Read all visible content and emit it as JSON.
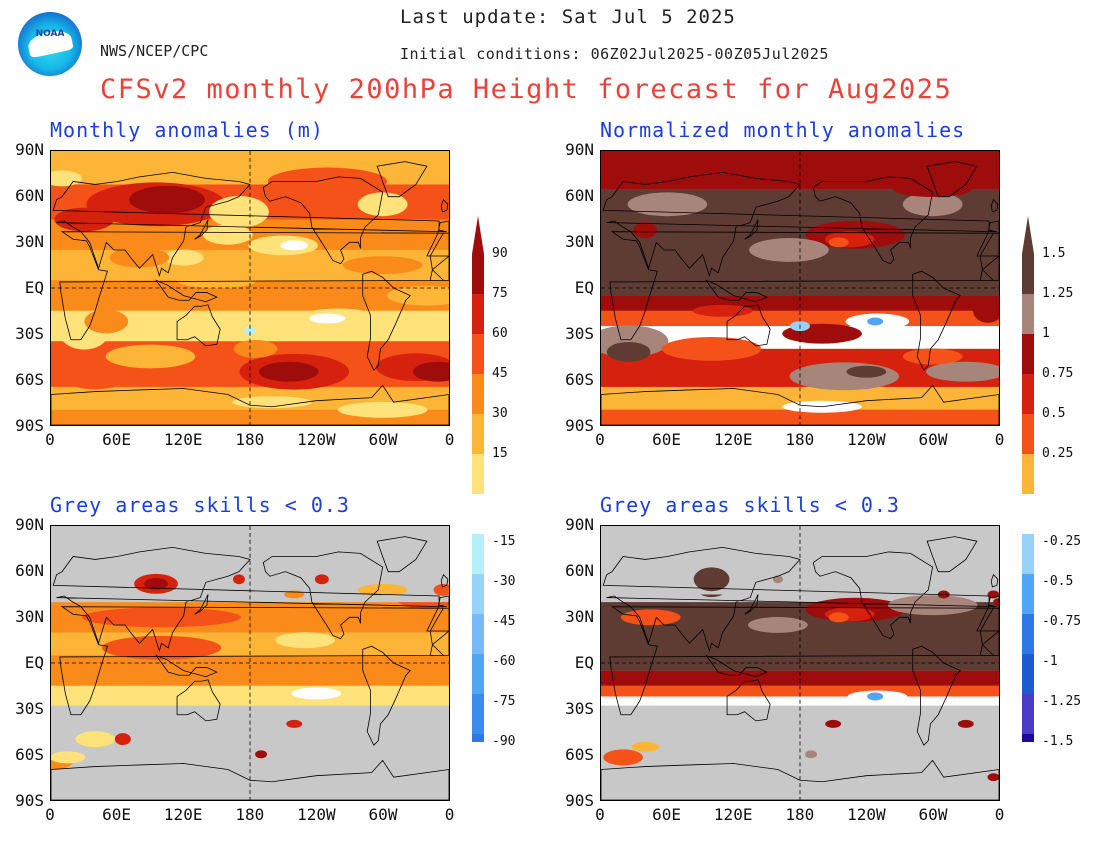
{
  "header": {
    "last_update": "Last update: Sat Jul 5 2025",
    "initial_conditions": "Initial conditions: 06Z02Jul2025-00Z05Jul2025",
    "org": "NWS/NCEP/CPC",
    "logo_text": "NOAA",
    "title": "CFSv2 monthly 200hPa Height forecast for Aug2025"
  },
  "panels": [
    {
      "id": "tl",
      "title": "Monthly anomalies (m)",
      "type": "anomaly",
      "masked": false
    },
    {
      "id": "tr",
      "title": "Normalized monthly anomalies",
      "type": "normalized",
      "masked": false
    },
    {
      "id": "bl",
      "title": "Grey areas skills < 0.3",
      "type": "anomaly",
      "masked": true
    },
    {
      "id": "br",
      "title": "Grey areas skills < 0.3",
      "type": "normalized",
      "masked": true
    }
  ],
  "axes": {
    "lat_labels": [
      "90N",
      "60N",
      "30N",
      "EQ",
      "30S",
      "60S",
      "90S"
    ],
    "lon_labels": [
      "0",
      "60E",
      "120E",
      "180",
      "120W",
      "60W",
      "0"
    ]
  },
  "colorbars": {
    "anomaly": {
      "positive": [
        "90",
        "75",
        "60",
        "45",
        "30",
        "15"
      ],
      "negative": [
        "-15",
        "-30",
        "-45",
        "-60",
        "-75",
        "-90"
      ]
    },
    "normalized": {
      "positive": [
        "1.5",
        "1.25",
        "1",
        "0.75",
        "0.5",
        "0.25"
      ],
      "negative": [
        "-0.25",
        "-0.5",
        "-0.75",
        "-1",
        "-1.25",
        "-1.5"
      ]
    }
  },
  "colors": {
    "pos_ramp": [
      "#ffffff",
      "#ffe27a",
      "#fcb537",
      "#fa8a1a",
      "#f5521a",
      "#d7210f",
      "#9e0d0b"
    ],
    "norm_ramp": [
      "#ffffff",
      "#fcb537",
      "#f5521a",
      "#d7210f",
      "#9e0d0b",
      "#a8857b",
      "#5e3c33"
    ],
    "neg_ramp": [
      "#b4f0fa",
      "#96d2fa",
      "#78b9fa",
      "#50a5f5",
      "#3c8cf0",
      "#2d78e6"
    ],
    "norm_neg_ramp": [
      "#96d2fa",
      "#50a5f5",
      "#2d78e6",
      "#1e5ad2",
      "#4b3cc8",
      "#1a0aa0"
    ],
    "title_red": "#e8433a",
    "title_blue": "#1a3fdc",
    "mask_grey": "#c8c8c8"
  }
}
